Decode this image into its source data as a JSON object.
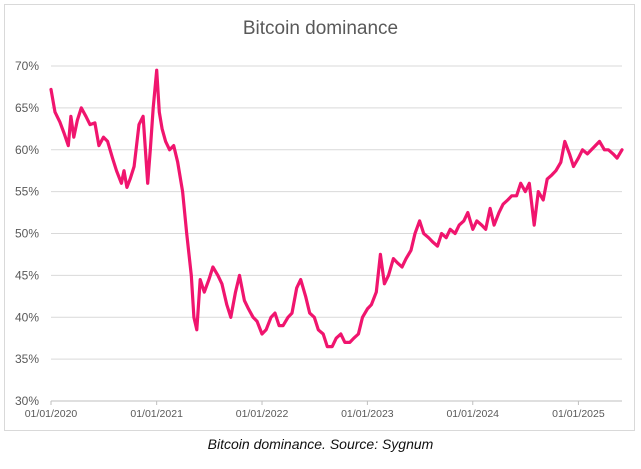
{
  "caption": "Bitcoin dominance. Source: Sygnum",
  "colors": {
    "line": "#f0156e",
    "grid": "#d9d9d9",
    "axis_text": "#595959"
  },
  "chart_data": {
    "type": "line",
    "title": "Bitcoin dominance",
    "xlabel": "",
    "ylabel": "",
    "x_range": [
      "2020-01-01",
      "2025-06-01"
    ],
    "ylim": [
      30,
      70
    ],
    "y_ticks": [
      "30%",
      "35%",
      "40%",
      "45%",
      "50%",
      "55%",
      "60%",
      "65%",
      "70%"
    ],
    "x_ticks": [
      {
        "date": "2020-01-01",
        "label": "01/01/2020"
      },
      {
        "date": "2021-01-01",
        "label": "01/01/2021"
      },
      {
        "date": "2022-01-01",
        "label": "01/01/2022"
      },
      {
        "date": "2023-01-01",
        "label": "01/01/2023"
      },
      {
        "date": "2024-01-01",
        "label": "01/01/2024"
      },
      {
        "date": "2025-01-01",
        "label": "01/01/2025"
      }
    ],
    "grid": "horizontal",
    "legend": "none",
    "series": [
      {
        "x": [
          "2020-01-01",
          "2020-01-15",
          "2020-02-01",
          "2020-02-15",
          "2020-03-01",
          "2020-03-10",
          "2020-03-20",
          "2020-04-01",
          "2020-04-15",
          "2020-05-01",
          "2020-05-15",
          "2020-06-01",
          "2020-06-15",
          "2020-07-01",
          "2020-07-15",
          "2020-08-01",
          "2020-08-15",
          "2020-09-01",
          "2020-09-10",
          "2020-09-20",
          "2020-10-01",
          "2020-10-15",
          "2020-11-01",
          "2020-11-15",
          "2020-12-01",
          "2020-12-10",
          "2020-12-20",
          "2021-01-01",
          "2021-01-10",
          "2021-01-20",
          "2021-02-01",
          "2021-02-15",
          "2021-03-01",
          "2021-03-15",
          "2021-04-01",
          "2021-04-15",
          "2021-05-01",
          "2021-05-10",
          "2021-05-20",
          "2021-06-01",
          "2021-06-15",
          "2021-07-01",
          "2021-07-15",
          "2021-08-01",
          "2021-08-15",
          "2021-09-01",
          "2021-09-15",
          "2021-10-01",
          "2021-10-15",
          "2021-11-01",
          "2021-11-15",
          "2021-12-01",
          "2021-12-15",
          "2022-01-01",
          "2022-01-15",
          "2022-02-01",
          "2022-02-15",
          "2022-03-01",
          "2022-03-15",
          "2022-04-01",
          "2022-04-15",
          "2022-05-01",
          "2022-05-15",
          "2022-06-01",
          "2022-06-15",
          "2022-07-01",
          "2022-07-15",
          "2022-08-01",
          "2022-08-15",
          "2022-09-01",
          "2022-09-15",
          "2022-10-01",
          "2022-10-15",
          "2022-11-01",
          "2022-11-15",
          "2022-12-01",
          "2022-12-15",
          "2023-01-01",
          "2023-01-15",
          "2023-02-01",
          "2023-02-15",
          "2023-03-01",
          "2023-03-15",
          "2023-04-01",
          "2023-04-15",
          "2023-05-01",
          "2023-05-15",
          "2023-06-01",
          "2023-06-15",
          "2023-07-01",
          "2023-07-15",
          "2023-08-01",
          "2023-08-15",
          "2023-09-01",
          "2023-09-15",
          "2023-10-01",
          "2023-10-15",
          "2023-11-01",
          "2023-11-15",
          "2023-12-01",
          "2023-12-15",
          "2024-01-01",
          "2024-01-15",
          "2024-02-01",
          "2024-02-15",
          "2024-03-01",
          "2024-03-15",
          "2024-04-01",
          "2024-04-15",
          "2024-05-01",
          "2024-05-15",
          "2024-06-01",
          "2024-06-15",
          "2024-07-01",
          "2024-07-15",
          "2024-08-01",
          "2024-08-15",
          "2024-09-01",
          "2024-09-15",
          "2024-10-01",
          "2024-10-15",
          "2024-11-01",
          "2024-11-15",
          "2024-12-01",
          "2024-12-15",
          "2025-01-01",
          "2025-01-15",
          "2025-02-01",
          "2025-02-15",
          "2025-03-01",
          "2025-03-15",
          "2025-04-01",
          "2025-04-15",
          "2025-05-01",
          "2025-05-15",
          "2025-06-01"
        ],
        "y": [
          67.2,
          64.5,
          63.3,
          62.0,
          60.5,
          64.0,
          61.5,
          63.5,
          65.0,
          64.0,
          63.0,
          63.2,
          60.5,
          61.5,
          61.0,
          59.0,
          57.5,
          56.0,
          57.5,
          55.5,
          56.5,
          58.0,
          63.0,
          64.0,
          56.0,
          60.0,
          65.0,
          69.5,
          64.5,
          62.5,
          61.0,
          60.0,
          60.5,
          58.5,
          55.0,
          50.0,
          45.0,
          40.0,
          38.5,
          44.5,
          43.0,
          44.5,
          46.0,
          45.0,
          44.0,
          41.5,
          40.0,
          43.0,
          45.0,
          42.0,
          41.0,
          40.0,
          39.5,
          38.0,
          38.5,
          40.0,
          40.5,
          39.0,
          39.0,
          40.0,
          40.5,
          43.5,
          44.5,
          42.5,
          40.5,
          40.0,
          38.5,
          38.0,
          36.5,
          36.5,
          37.5,
          38.0,
          37.0,
          37.0,
          37.5,
          38.0,
          40.0,
          41.0,
          41.5,
          43.0,
          47.5,
          44.0,
          45.0,
          47.0,
          46.5,
          46.0,
          47.0,
          48.0,
          50.0,
          51.5,
          50.0,
          49.5,
          49.0,
          48.5,
          50.0,
          49.5,
          50.5,
          50.0,
          51.0,
          51.5,
          52.5,
          50.5,
          51.5,
          51.0,
          50.5,
          53.0,
          51.0,
          52.5,
          53.5,
          54.0,
          54.5,
          54.5,
          56.0,
          55.0,
          56.0,
          51.0,
          55.0,
          54.0,
          56.5,
          57.0,
          57.5,
          58.5,
          61.0,
          59.5,
          58.0,
          59.0,
          60.0,
          59.5,
          60.0,
          60.5,
          61.0,
          60.0,
          60.0,
          59.5,
          59.0,
          60.0
        ]
      }
    ]
  }
}
